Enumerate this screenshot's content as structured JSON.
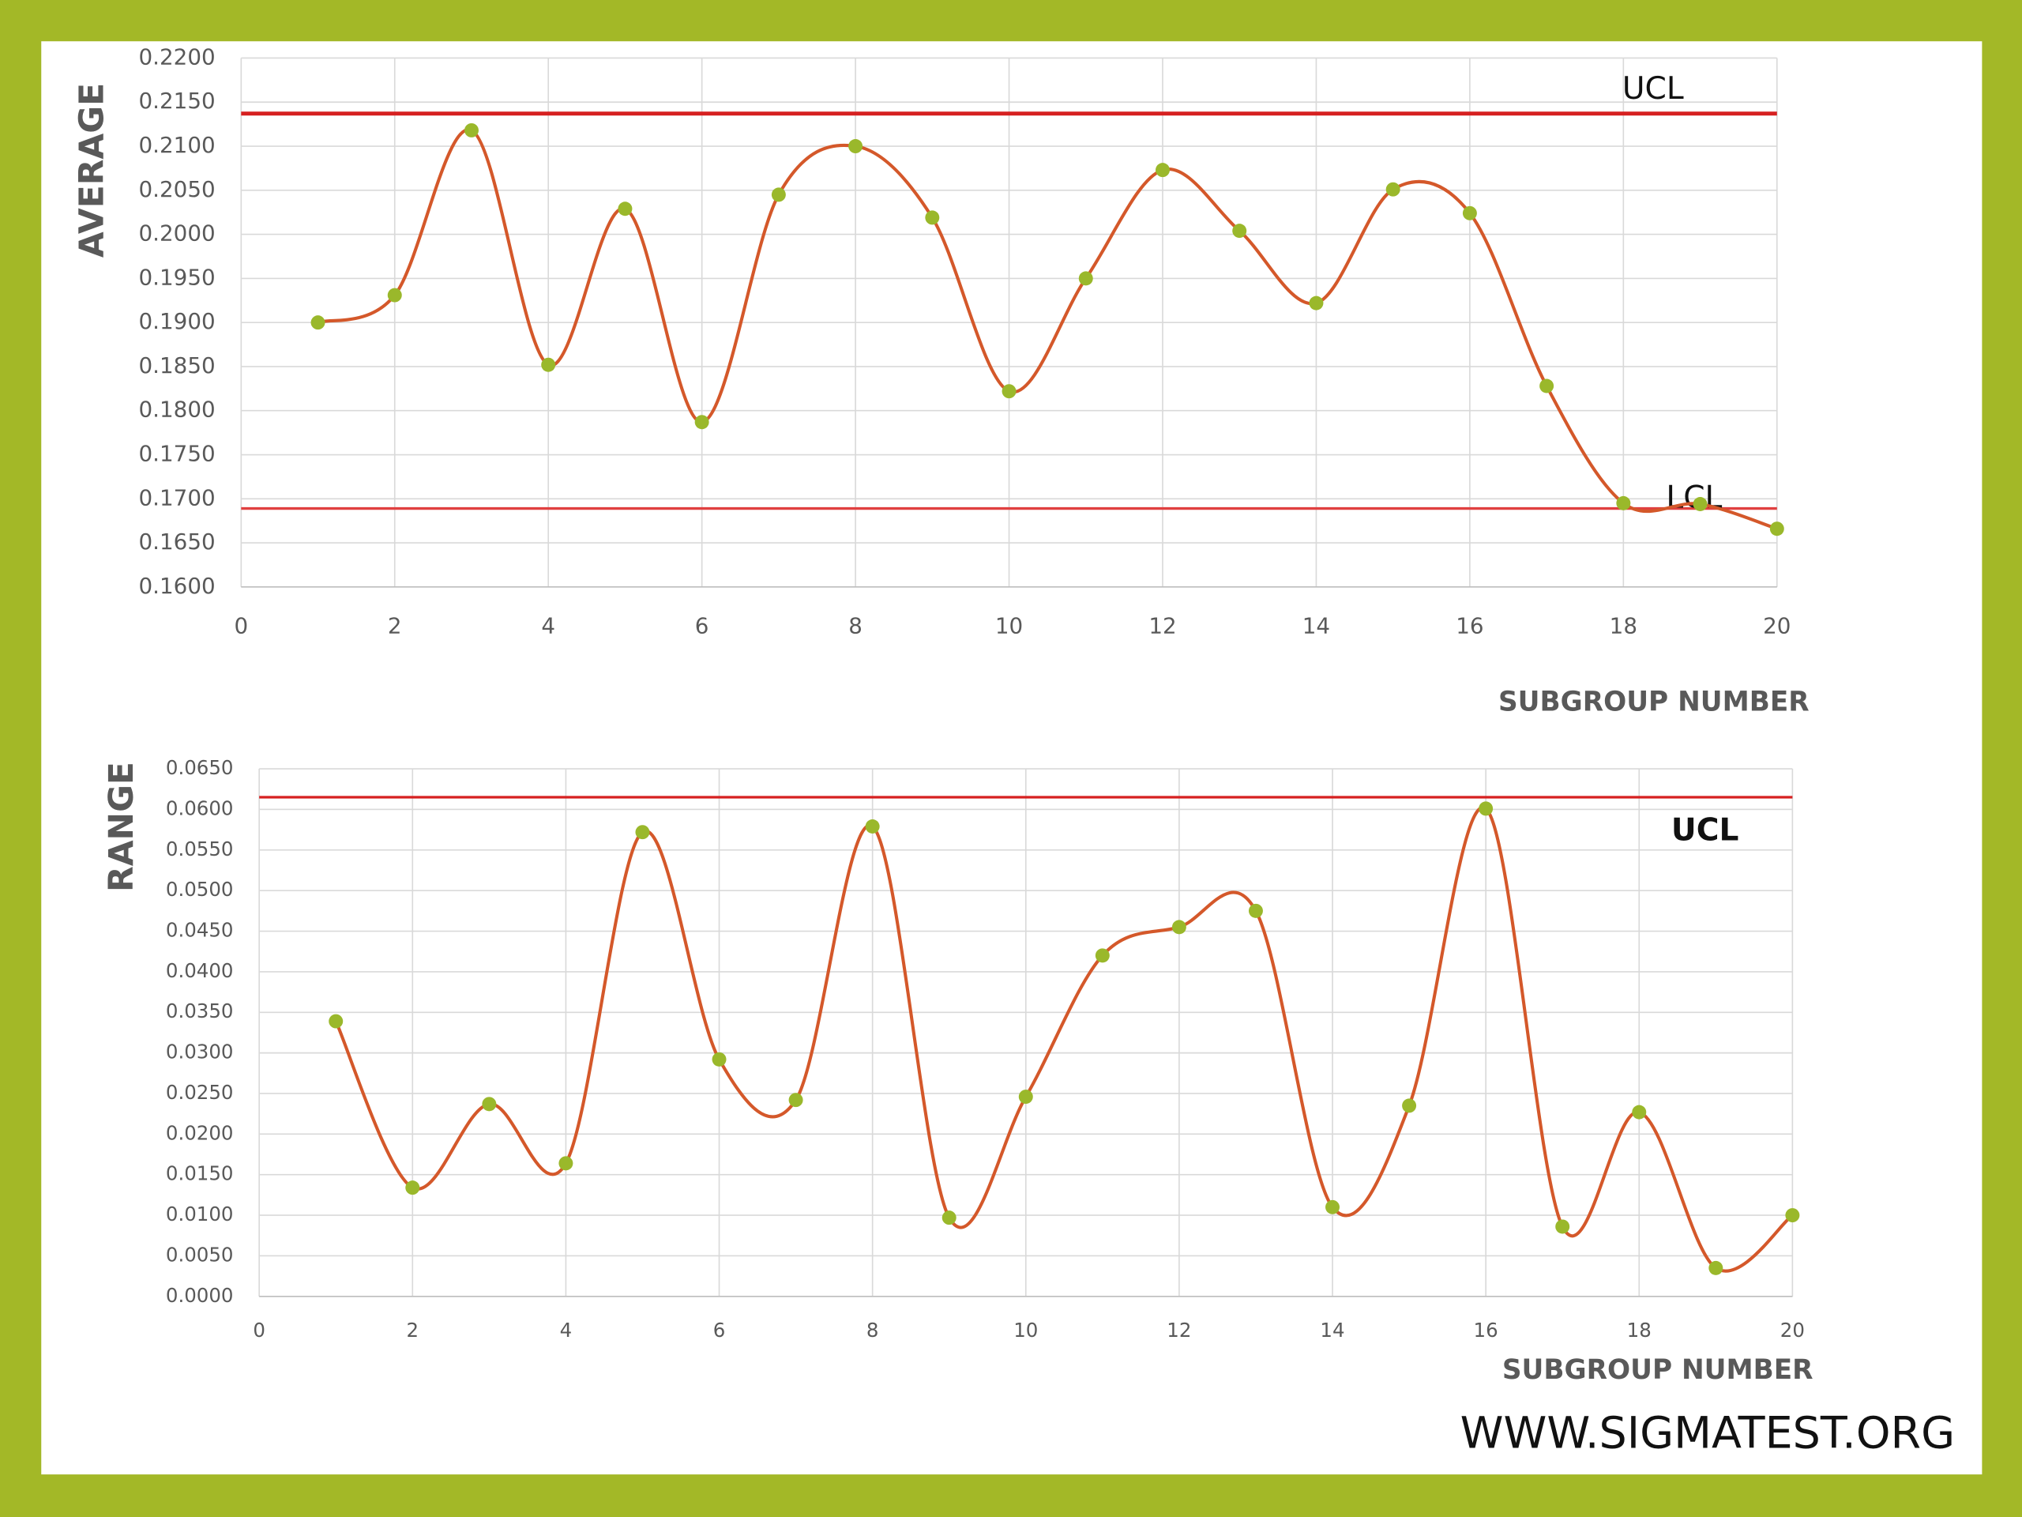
{
  "chart_data": [
    {
      "type": "line",
      "y_label": "AVERAGE",
      "x_label": "SUBGROUP NUMBER",
      "x": [
        1,
        2,
        3,
        4,
        5,
        6,
        7,
        8,
        9,
        10,
        11,
        12,
        13,
        14,
        15,
        16,
        17,
        18,
        19,
        20
      ],
      "series": [
        {
          "color": "#d4582a",
          "marker_color": "#9ab82b",
          "values": [
            0.19,
            0.1931,
            0.2118,
            0.1852,
            0.2029,
            0.1787,
            0.2045,
            0.21,
            0.2019,
            0.1822,
            0.195,
            0.2073,
            0.2004,
            0.1922,
            0.2051,
            0.2024,
            0.1828,
            0.1695,
            0.1694,
            0.1666
          ]
        }
      ],
      "reference_lines": [
        {
          "label": "UCL",
          "value": 0.2137,
          "color": "#d62020"
        },
        {
          "label": "LCL",
          "value": 0.1689,
          "color": "#e04040"
        }
      ],
      "xlim": [
        0,
        20
      ],
      "xticks": [
        0,
        2,
        4,
        6,
        8,
        10,
        12,
        14,
        16,
        18,
        20
      ],
      "ylim": [
        0.16,
        0.22
      ],
      "yticks": [
        {
          "value": 0.16,
          "label": "0.1600"
        },
        {
          "value": 0.165,
          "label": "0.1650"
        },
        {
          "value": 0.17,
          "label": "0.1700"
        },
        {
          "value": 0.175,
          "label": "0.1750"
        },
        {
          "value": 0.18,
          "label": "0.1800"
        },
        {
          "value": 0.185,
          "label": "0.1850"
        },
        {
          "value": 0.19,
          "label": "0.1900"
        },
        {
          "value": 0.195,
          "label": "0.1950"
        },
        {
          "value": 0.2,
          "label": "0.2000"
        },
        {
          "value": 0.205,
          "label": "0.2050"
        },
        {
          "value": 0.21,
          "label": "0.2100"
        },
        {
          "value": 0.215,
          "label": "0.2150"
        },
        {
          "value": 0.22,
          "label": "0.2200"
        }
      ],
      "grid": true
    },
    {
      "type": "line",
      "y_label": "RANGE",
      "x_label": "SUBGROUP NUMBER",
      "x": [
        1,
        2,
        3,
        4,
        5,
        6,
        7,
        8,
        9,
        10,
        11,
        12,
        13,
        14,
        15,
        16,
        17,
        18,
        19,
        20
      ],
      "series": [
        {
          "color": "#d4582a",
          "marker_color": "#9ab82b",
          "values": [
            0.0339,
            0.0134,
            0.0237,
            0.0164,
            0.0572,
            0.0292,
            0.0242,
            0.0579,
            0.0097,
            0.0246,
            0.042,
            0.0455,
            0.0475,
            0.011,
            0.0235,
            0.0601,
            0.0086,
            0.0227,
            0.0035,
            0.01
          ]
        }
      ],
      "reference_lines": [
        {
          "label": "UCL",
          "value": 0.0615,
          "color": "#d62020"
        }
      ],
      "xlim": [
        0,
        20
      ],
      "xticks": [
        0,
        2,
        4,
        6,
        8,
        10,
        12,
        14,
        16,
        18,
        20
      ],
      "ylim": [
        0,
        0.065
      ],
      "yticks": [
        {
          "value": 0,
          "label": "0.0000"
        },
        {
          "value": 0.005,
          "label": "0.0050"
        },
        {
          "value": 0.01,
          "label": "0.0100"
        },
        {
          "value": 0.015,
          "label": "0.0150"
        },
        {
          "value": 0.02,
          "label": "0.0200"
        },
        {
          "value": 0.025,
          "label": "0.0250"
        },
        {
          "value": 0.03,
          "label": "0.0300"
        },
        {
          "value": 0.035,
          "label": "0.0350"
        },
        {
          "value": 0.04,
          "label": "0.0400"
        },
        {
          "value": 0.045,
          "label": "0.0450"
        },
        {
          "value": 0.05,
          "label": "0.0500"
        },
        {
          "value": 0.055,
          "label": "0.0550"
        },
        {
          "value": 0.06,
          "label": "0.0600"
        },
        {
          "value": 0.065,
          "label": "0.0650"
        }
      ],
      "grid": true
    }
  ],
  "footer": "WWW.SIGMATEST.ORG"
}
